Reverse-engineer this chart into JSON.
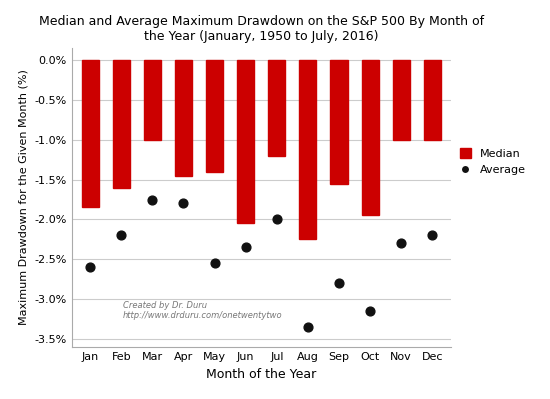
{
  "months": [
    "Jan",
    "Feb",
    "Mar",
    "Apr",
    "May",
    "Jun",
    "Jul",
    "Aug",
    "Sep",
    "Oct",
    "Nov",
    "Dec"
  ],
  "median": [
    -1.85,
    -1.6,
    -1.0,
    -1.45,
    -1.4,
    -2.05,
    -1.2,
    -2.25,
    -1.55,
    -1.95,
    -1.0,
    -1.0
  ],
  "average": [
    -2.6,
    -2.2,
    -1.75,
    -1.8,
    -2.55,
    -2.35,
    -2.0,
    -3.35,
    -2.8,
    -3.15,
    -2.3,
    -2.2
  ],
  "bar_color": "#CC0000",
  "dot_color": "#111111",
  "title_line1": "Median and Average Maximum Drawdown on the S&P 500 By Month of",
  "title_line2": "the Year (January, 1950 to July, 2016)",
  "xlabel": "Month of the Year",
  "ylabel": "Maximum Drawdown for the Given Month (%)",
  "ylim": [
    -3.6,
    0.15
  ],
  "yticks": [
    0.0,
    -0.5,
    -1.0,
    -1.5,
    -2.0,
    -2.5,
    -3.0,
    -3.5
  ],
  "ytick_labels": [
    "0.0%",
    "-0.5%",
    "-1.0%",
    "-1.5%",
    "-2.0%",
    "-2.5%",
    "-3.0%",
    "-3.5%"
  ],
  "annotation_line1": "Created by Dr. Duru",
  "annotation_line2": "http://www.drduru.com/onetwentytwo",
  "background_color": "#FFFFFF",
  "grid_color": "#CCCCCC",
  "legend_median_label": "Median",
  "legend_average_label": "Average",
  "bar_width": 0.55,
  "dot_size": 40
}
